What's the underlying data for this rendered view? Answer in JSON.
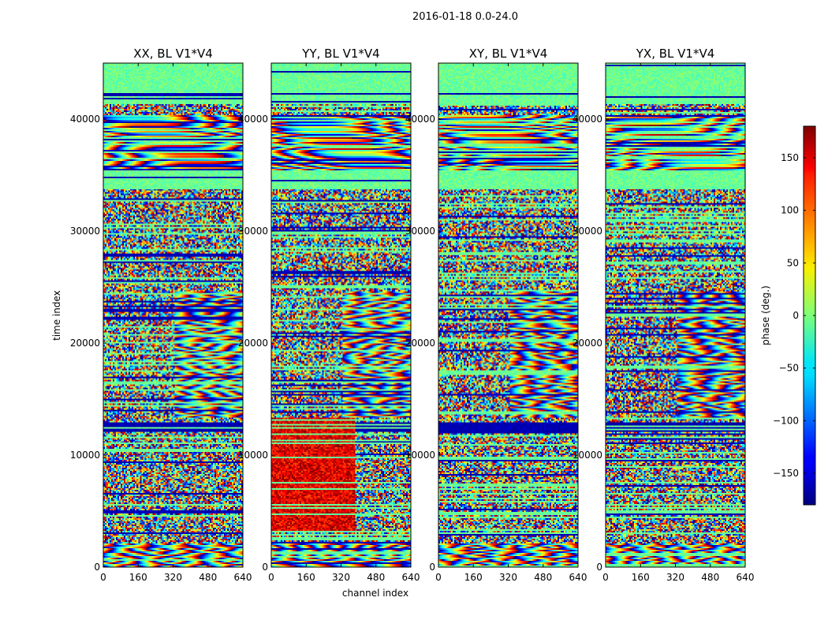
{
  "suptitle": "2016-01-18 0.0-24.0",
  "chart_data": {
    "type": "heatmap",
    "colormap": "jet",
    "xlabel": "channel index",
    "ylabel": "time index",
    "xlim": [
      0,
      640
    ],
    "ylim": [
      0,
      45000
    ],
    "xticks": [
      0,
      160,
      320,
      480,
      640
    ],
    "yticks": [
      0,
      10000,
      20000,
      30000,
      40000
    ],
    "panels": [
      {
        "title": "XX, BL V1*V4"
      },
      {
        "title": "YY, BL V1*V4"
      },
      {
        "title": "XY, BL V1*V4"
      },
      {
        "title": "YX, BL V1*V4"
      }
    ],
    "colorbar": {
      "label": "phase (deg.)",
      "range": [
        -180,
        180
      ],
      "ticks": [
        -150,
        -100,
        -50,
        0,
        50,
        100,
        150
      ],
      "tick_labels": [
        "−150",
        "−100",
        "−50",
        "0",
        "50",
        "100",
        "150"
      ]
    }
  }
}
